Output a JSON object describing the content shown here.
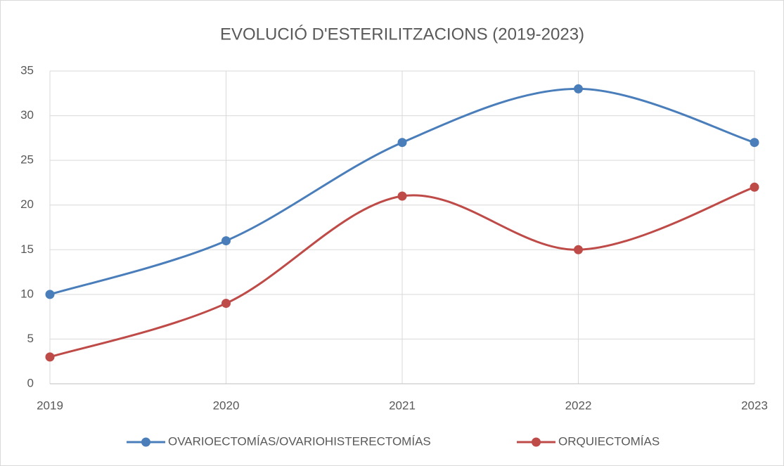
{
  "chart_data": {
    "type": "line",
    "title": "EVOLUCIÓ D'ESTERILITZACIONS (2019-2023)",
    "categories": [
      "2019",
      "2020",
      "2021",
      "2022",
      "2023"
    ],
    "series": [
      {
        "name": "OVARIOECTOMÍAS/OVARIOHISTERECTOMÍAS",
        "color": "#4a7ebb",
        "values": [
          10,
          16,
          27,
          33,
          27
        ]
      },
      {
        "name": "ORQUIECTOMÍAS",
        "color": "#be4b48",
        "values": [
          3,
          9,
          21,
          15,
          22
        ]
      }
    ],
    "ylim": [
      0,
      35
    ],
    "yticks": [
      0,
      5,
      10,
      15,
      20,
      25,
      30,
      35
    ],
    "grid": true,
    "smooth": true,
    "legend": "bottom"
  }
}
